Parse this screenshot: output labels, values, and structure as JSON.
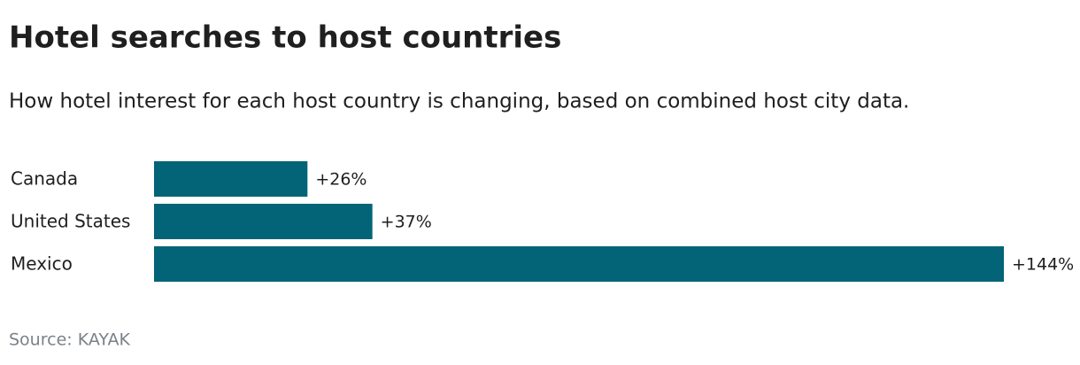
{
  "chart_data": {
    "type": "bar",
    "orientation": "horizontal",
    "title": "Hotel searches to host countries",
    "subtitle": "How hotel interest for each host country is changing, based on combined host city data.",
    "categories": [
      "Canada",
      "United States",
      "Mexico"
    ],
    "values": [
      26,
      37,
      144
    ],
    "value_labels": [
      "+26%",
      "+37%",
      "+144%"
    ],
    "color": "#036477",
    "source": "Source: KAYAK"
  }
}
